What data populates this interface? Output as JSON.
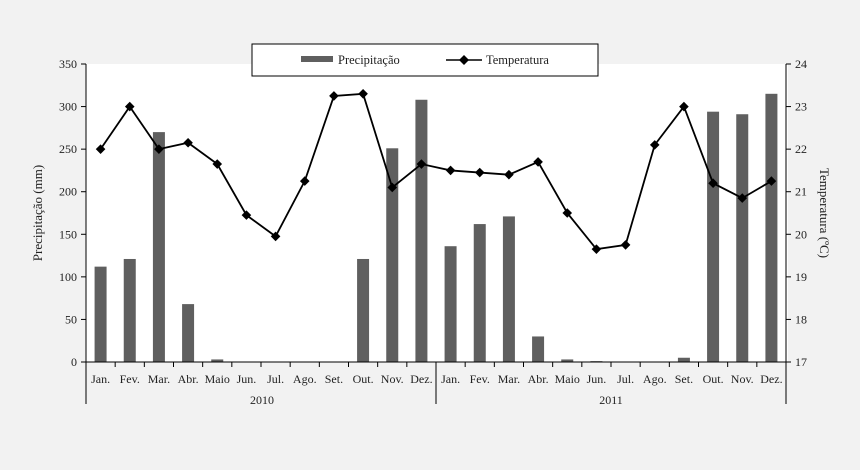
{
  "chart_data": {
    "type": "bar+line",
    "categories": [
      "Jan.",
      "Fev.",
      "Mar.",
      "Abr.",
      "Maio",
      "Jun.",
      "Jul.",
      "Ago.",
      "Set.",
      "Out.",
      "Nov.",
      "Dez.",
      "Jan.",
      "Fev.",
      "Mar.",
      "Abr.",
      "Maio",
      "Jun.",
      "Jul.",
      "Ago.",
      "Set.",
      "Out.",
      "Nov.",
      "Dez."
    ],
    "groups": [
      {
        "label": "2010",
        "start": 0,
        "end": 11
      },
      {
        "label": "2011",
        "start": 12,
        "end": 23
      }
    ],
    "series": [
      {
        "name": "Precipitação",
        "type": "bar",
        "axis": "left",
        "color": "#5f5f5f",
        "values": [
          112,
          121,
          270,
          68,
          3,
          0,
          0,
          0,
          0,
          121,
          251,
          308,
          136,
          162,
          171,
          30,
          3,
          1,
          0,
          0,
          5,
          294,
          291,
          315
        ]
      },
      {
        "name": "Temperatura",
        "type": "line",
        "axis": "right",
        "color": "#000000",
        "marker": "diamond",
        "values": [
          22.0,
          23.0,
          22.0,
          22.15,
          21.65,
          20.45,
          19.95,
          21.25,
          23.25,
          23.3,
          21.1,
          21.65,
          21.5,
          21.45,
          21.4,
          21.7,
          20.5,
          19.65,
          19.75,
          22.1,
          23.0,
          21.2,
          20.85,
          21.25
        ]
      }
    ],
    "ylabel": "Precipitação (mm)",
    "y2label": "Temperatura (ºC)",
    "ylim": [
      0,
      350
    ],
    "yticks": [
      0,
      50,
      100,
      150,
      200,
      250,
      300,
      350
    ],
    "y2lim": [
      17,
      24
    ],
    "y2ticks": [
      17,
      18,
      19,
      20,
      21,
      22,
      23,
      24
    ],
    "grid": false,
    "legend": "top-center"
  }
}
